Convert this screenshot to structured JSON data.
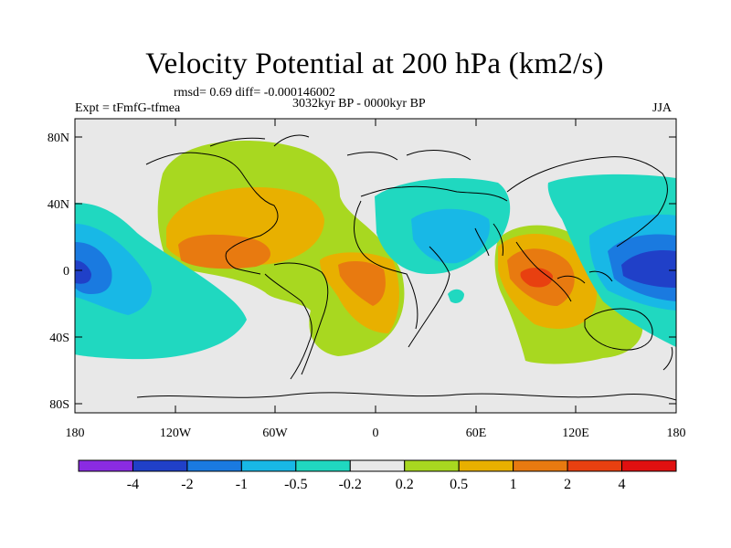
{
  "title": "Velocity Potential at 200 hPa (km2/s)",
  "stats_line": "rmsd= 0.69 diff= -0.000146002",
  "experiment": "Expt = tFmfG-tfmea",
  "period": "3032kyr BP - 0000kyr BP",
  "season": "JJA",
  "x_ticks": [
    "180",
    "120W",
    "60W",
    "0",
    "60E",
    "120E",
    "180"
  ],
  "y_ticks": [
    "80N",
    "40N",
    "0",
    "40S",
    "80S"
  ],
  "colorbar": {
    "labels": [
      "-4",
      "-2",
      "-1",
      "-0.5",
      "-0.2",
      "0.2",
      "0.5",
      "1",
      "2",
      "4"
    ],
    "colors": [
      "#8a2be2",
      "#2040c8",
      "#1a7ae0",
      "#18b8e6",
      "#20d8c0",
      "#e8e8e8",
      "#a8d820",
      "#e8b000",
      "#e87a10",
      "#e84010",
      "#e01010"
    ]
  },
  "map_fields": {
    "background": "#e8e8e8",
    "coast_color": "#000000"
  }
}
